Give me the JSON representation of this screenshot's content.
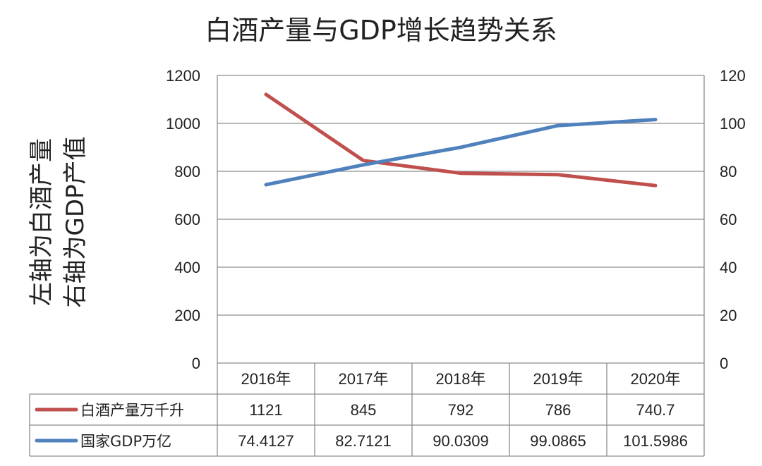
{
  "chart_data": {
    "type": "line",
    "title": "白酒产量与GDP增长趋势关系",
    "ylabel_left": "左轴为白酒产量",
    "ylabel_right": "右轴为GDP产值",
    "categories": [
      "2016年",
      "2017年",
      "2018年",
      "2019年",
      "2020年"
    ],
    "y_left": {
      "ylim": [
        0,
        1200
      ],
      "ticks": [
        "0",
        "200",
        "400",
        "600",
        "800",
        "1000",
        "1200"
      ]
    },
    "y_right": {
      "ylim": [
        0,
        120
      ],
      "ticks": [
        "0",
        "20",
        "40",
        "60",
        "80",
        "100",
        "120"
      ]
    },
    "grid": true,
    "legend": "data-table",
    "series": [
      {
        "name": "白酒产量万千升",
        "axis": "left",
        "color": "#c0504d",
        "values": [
          1121,
          845,
          792,
          786,
          740.7
        ],
        "labels": [
          "1121",
          "845",
          "792",
          "786",
          "740.7"
        ]
      },
      {
        "name": "国家GDP万亿",
        "axis": "right",
        "color": "#4f81bd",
        "values": [
          74.4127,
          82.7121,
          90.0309,
          99.0865,
          101.5986
        ],
        "labels": [
          "74.4127",
          "82.7121",
          "90.0309",
          "99.0865",
          "101.5986"
        ]
      }
    ]
  }
}
